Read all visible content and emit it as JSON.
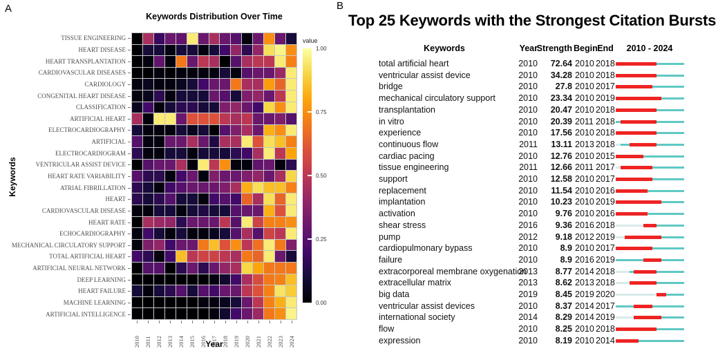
{
  "colors": {
    "burst_red": "#ee2423",
    "burst_cyan": "#5fc8c3",
    "burst_pale": "#d9eaea",
    "heatmap_grid": "#c6c6c6"
  },
  "panelA": {
    "label": "A",
    "title": "Keywords Distribution Over Time",
    "xlabel": "Year",
    "ylabel": "Keywords",
    "legend": {
      "title": "value",
      "ticks": [
        "1.00",
        "0.75",
        "0.50",
        "0.25",
        "0.00"
      ]
    }
  },
  "panelB": {
    "label": "B",
    "title": "Top 25 Keywords with the Strongest Citation Bursts",
    "columns": {
      "keyword": "Keywords",
      "year": "Year",
      "strength": "Strength",
      "begin": "Begin",
      "end": "End",
      "range": "2010 - 2024"
    }
  },
  "chart_data": [
    {
      "type": "heatmap",
      "title": "Keywords Distribution Over Time",
      "xlabel": "Year",
      "ylabel": "Keywords",
      "colormap": "inferno",
      "value_range": [
        0.0,
        1.0
      ],
      "legend_title": "value",
      "x": [
        "2010",
        "2011",
        "2012",
        "2013",
        "2014",
        "2015",
        "2016",
        "2017",
        "2018",
        "2019",
        "2020",
        "2021",
        "2022",
        "2023",
        "2024"
      ],
      "y": [
        "TISSUE ENGINEERING",
        "HEART DISEASE",
        "HEART TRANSPLANTATION",
        "CARDIOVASCULAR DISEASES",
        "CARDIOLOGY",
        "CONGENITAL HEART DISEASE",
        "CLASSIFICATION",
        "ARTIFICIAL HEART",
        "ELECTROCARDIOGRAPHY",
        "ARTIFICIAL",
        "ELECTROCARDIOGRAM",
        "VENTRICULAR ASSIST DEVICE",
        "HEART RATE VARIABILITY",
        "ATRIAL FIBRILLATION",
        "HEART",
        "CARDIOVASCULAR DISEASE",
        "HEART RATE",
        "ECHOCARDIOGRAPHY",
        "MECHANICAL CIRCULATORY SUPPORT",
        "TOTAL ARTIFICIAL HEART",
        "ARTIFICIAL NEURAL NETWORK",
        "DEEP LEARNING",
        "HEART FAILURE",
        "MACHINE LEARNING",
        "ARTIFICIAL INTELLIGENCE"
      ],
      "values": [
        [
          0.0,
          0.45,
          0.18,
          0.3,
          0.28,
          0.95,
          0.3,
          0.45,
          0.3,
          0.25,
          0.02,
          0.3,
          0.75,
          0.3,
          0.1
        ],
        [
          0.0,
          0.1,
          0.1,
          0.02,
          0.1,
          0.1,
          0.02,
          0.1,
          0.2,
          0.4,
          0.15,
          0.4,
          0.92,
          0.97,
          0.75
        ],
        [
          0.0,
          0.02,
          0.28,
          0.02,
          0.7,
          0.3,
          0.5,
          0.45,
          0.0,
          0.25,
          0.45,
          0.5,
          0.5,
          0.95,
          0.72
        ],
        [
          0.0,
          0.0,
          0.02,
          0.0,
          0.02,
          0.02,
          0.02,
          0.02,
          0.1,
          0.02,
          0.25,
          0.3,
          0.3,
          0.42,
          0.95
        ],
        [
          0.02,
          0.05,
          0.02,
          0.02,
          0.05,
          0.1,
          0.2,
          0.3,
          0.3,
          0.7,
          0.45,
          0.45,
          0.78,
          0.65,
          0.95
        ],
        [
          0.02,
          0.05,
          0.15,
          0.02,
          0.1,
          0.1,
          0.1,
          0.3,
          0.25,
          0.1,
          0.35,
          0.4,
          0.3,
          0.5,
          0.95
        ],
        [
          0.05,
          0.2,
          0.02,
          0.1,
          0.15,
          0.15,
          0.1,
          0.1,
          0.35,
          0.4,
          0.3,
          0.2,
          0.9,
          0.75,
          0.95
        ],
        [
          0.45,
          0.02,
          0.95,
          0.95,
          0.3,
          0.6,
          0.6,
          0.6,
          0.5,
          0.45,
          0.5,
          0.3,
          0.3,
          0.35,
          0.25
        ],
        [
          0.1,
          0.02,
          0.02,
          0.02,
          0.1,
          0.05,
          0.1,
          0.0,
          0.25,
          0.35,
          0.45,
          0.3,
          0.82,
          0.75,
          0.95
        ],
        [
          0.25,
          0.02,
          0.02,
          0.3,
          0.3,
          0.45,
          0.3,
          0.12,
          0.45,
          0.45,
          0.95,
          0.6,
          0.92,
          0.85,
          0.72
        ],
        [
          0.15,
          0.02,
          0.02,
          0.1,
          0.1,
          0.02,
          0.1,
          0.1,
          0.1,
          0.15,
          0.2,
          0.45,
          0.95,
          0.5,
          0.8
        ],
        [
          0.0,
          0.25,
          0.3,
          0.3,
          0.45,
          0.02,
          0.95,
          0.5,
          0.75,
          0.02,
          0.02,
          0.28,
          0.3,
          0.02,
          0.15
        ],
        [
          0.25,
          0.15,
          0.15,
          0.02,
          0.2,
          0.3,
          0.02,
          0.35,
          0.3,
          0.3,
          0.35,
          0.4,
          0.3,
          0.45,
          0.9
        ],
        [
          0.15,
          0.1,
          0.02,
          0.2,
          0.25,
          0.3,
          0.3,
          0.3,
          0.35,
          0.45,
          0.82,
          0.92,
          0.85,
          0.85,
          0.72
        ],
        [
          0.15,
          0.1,
          0.15,
          0.25,
          0.1,
          0.1,
          0.02,
          0.2,
          0.25,
          0.2,
          0.65,
          0.45,
          0.92,
          0.65,
          0.95
        ],
        [
          0.02,
          0.02,
          0.1,
          0.1,
          0.02,
          0.1,
          0.12,
          0.1,
          0.1,
          0.25,
          0.3,
          0.3,
          0.82,
          0.6,
          0.95
        ],
        [
          0.0,
          0.45,
          0.42,
          0.4,
          0.15,
          0.3,
          0.3,
          0.3,
          0.5,
          0.25,
          0.95,
          0.55,
          0.72,
          0.72,
          0.75
        ],
        [
          0.02,
          0.2,
          0.1,
          0.02,
          0.1,
          0.02,
          0.02,
          0.05,
          0.1,
          0.25,
          0.45,
          0.25,
          0.55,
          0.5,
          0.95
        ],
        [
          0.02,
          0.35,
          0.4,
          0.2,
          0.3,
          0.3,
          0.7,
          0.85,
          0.6,
          0.75,
          0.5,
          0.68,
          0.95,
          0.7,
          0.35
        ],
        [
          0.2,
          0.15,
          0.02,
          0.2,
          0.85,
          0.5,
          0.55,
          0.55,
          0.5,
          0.45,
          0.7,
          0.65,
          0.95,
          0.3,
          0.1
        ],
        [
          0.0,
          0.25,
          0.25,
          0.0,
          0.15,
          0.3,
          0.15,
          0.3,
          0.4,
          0.45,
          0.9,
          0.8,
          0.7,
          0.7,
          0.7
        ],
        [
          0.0,
          0.0,
          0.0,
          0.0,
          0.0,
          0.0,
          0.0,
          0.02,
          0.08,
          0.2,
          0.45,
          0.58,
          0.7,
          0.72,
          0.85
        ],
        [
          0.1,
          0.02,
          0.1,
          0.15,
          0.25,
          0.1,
          0.25,
          0.2,
          0.3,
          0.3,
          0.5,
          0.6,
          0.72,
          0.93,
          0.88
        ],
        [
          0.0,
          0.0,
          0.0,
          0.0,
          0.0,
          0.0,
          0.02,
          0.02,
          0.05,
          0.1,
          0.3,
          0.5,
          0.72,
          0.82,
          0.95
        ],
        [
          0.0,
          0.0,
          0.0,
          0.0,
          0.0,
          0.0,
          0.0,
          0.02,
          0.08,
          0.2,
          0.3,
          0.42,
          0.7,
          0.75,
          0.97
        ]
      ]
    },
    {
      "type": "table",
      "title": "Top 25 Keywords with the Strongest Citation Bursts",
      "columns": [
        "Keywords",
        "Year",
        "Strength",
        "Begin",
        "End",
        "2010 - 2024"
      ],
      "timeline_start": 2010,
      "timeline_end": 2024,
      "rows": [
        {
          "keyword": "total artificial heart",
          "year": 2010,
          "strength": "72.64",
          "begin": 2010,
          "end": 2018
        },
        {
          "keyword": "ventricular assist device",
          "year": 2010,
          "strength": "34.28",
          "begin": 2010,
          "end": 2018
        },
        {
          "keyword": "bridge",
          "year": 2010,
          "strength": "27.8",
          "begin": 2010,
          "end": 2017
        },
        {
          "keyword": "mechanical circulatory support",
          "year": 2010,
          "strength": "23.34",
          "begin": 2010,
          "end": 2019
        },
        {
          "keyword": "transplantation",
          "year": 2010,
          "strength": "20.47",
          "begin": 2010,
          "end": 2018
        },
        {
          "keyword": "in vitro",
          "year": 2010,
          "strength": "20.39",
          "begin": 2011,
          "end": 2018
        },
        {
          "keyword": "experience",
          "year": 2010,
          "strength": "17.56",
          "begin": 2010,
          "end": 2018
        },
        {
          "keyword": "continuous flow",
          "year": 2011,
          "strength": "13.11",
          "begin": 2013,
          "end": 2018
        },
        {
          "keyword": "cardiac pacing",
          "year": 2010,
          "strength": "12.76",
          "begin": 2010,
          "end": 2015
        },
        {
          "keyword": "tissue engineering",
          "year": 2011,
          "strength": "12.66",
          "begin": 2011,
          "end": 2017
        },
        {
          "keyword": "support",
          "year": 2010,
          "strength": "12.58",
          "begin": 2010,
          "end": 2017
        },
        {
          "keyword": "replacement",
          "year": 2010,
          "strength": "11.54",
          "begin": 2010,
          "end": 2016
        },
        {
          "keyword": "implantation",
          "year": 2010,
          "strength": "10.23",
          "begin": 2010,
          "end": 2019
        },
        {
          "keyword": "activation",
          "year": 2010,
          "strength": "9.76",
          "begin": 2010,
          "end": 2016
        },
        {
          "keyword": "shear stress",
          "year": 2016,
          "strength": "9.36",
          "begin": 2016,
          "end": 2018
        },
        {
          "keyword": "pump",
          "year": 2012,
          "strength": "9.18",
          "begin": 2012,
          "end": 2019
        },
        {
          "keyword": "cardiopulmonary bypass",
          "year": 2010,
          "strength": "8.9",
          "begin": 2010,
          "end": 2017
        },
        {
          "keyword": "failure",
          "year": 2010,
          "strength": "8.9",
          "begin": 2016,
          "end": 2019
        },
        {
          "keyword": "extracorporeal membrane oxygenation",
          "year": 2013,
          "strength": "8.77",
          "begin": 2014,
          "end": 2018
        },
        {
          "keyword": "extracellular matrix",
          "year": 2013,
          "strength": "8.62",
          "begin": 2013,
          "end": 2018
        },
        {
          "keyword": "big data",
          "year": 2019,
          "strength": "8.45",
          "begin": 2019,
          "end": 2020
        },
        {
          "keyword": "ventricular assist devices",
          "year": 2010,
          "strength": "8.37",
          "begin": 2014,
          "end": 2017
        },
        {
          "keyword": "international society",
          "year": 2014,
          "strength": "8.29",
          "begin": 2014,
          "end": 2019
        },
        {
          "keyword": "flow",
          "year": 2010,
          "strength": "8.25",
          "begin": 2010,
          "end": 2018
        },
        {
          "keyword": "expression",
          "year": 2010,
          "strength": "8.19",
          "begin": 2010,
          "end": 2014
        }
      ]
    }
  ]
}
